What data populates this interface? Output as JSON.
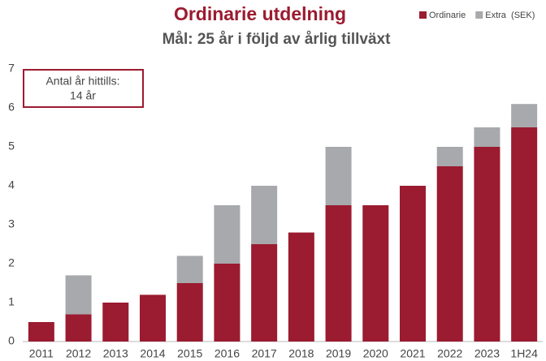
{
  "chart_data": {
    "type": "stacked_bar",
    "title": "Ordinarie utdelning",
    "subtitle": "Mål: 25 år i följd av årlig tillväxt",
    "annotation": [
      "Antal år hittills:",
      "14 år"
    ],
    "categories": [
      "2011",
      "2012",
      "2013",
      "2014",
      "2015",
      "2016",
      "2017",
      "2018",
      "2019",
      "2020",
      "2021",
      "2022",
      "2023",
      "1H24"
    ],
    "series": [
      {
        "name": "Ordinarie",
        "color": "#9b1b30",
        "values": [
          0.5,
          0.7,
          1.0,
          1.2,
          1.5,
          2.0,
          2.5,
          2.8,
          3.5,
          3.5,
          4.0,
          4.5,
          5.0,
          5.5
        ]
      },
      {
        "name": "Extra  (SEK)",
        "color": "#a7a9ac",
        "values": [
          0,
          1.0,
          0,
          0,
          0.7,
          1.5,
          1.5,
          0,
          1.5,
          0,
          0,
          0.5,
          0.5,
          0.6
        ]
      }
    ],
    "ylim": [
      0,
      7
    ],
    "yticks": [
      0,
      1,
      2,
      3,
      4,
      5,
      6,
      7
    ],
    "grid": false,
    "legend": "top-right"
  }
}
